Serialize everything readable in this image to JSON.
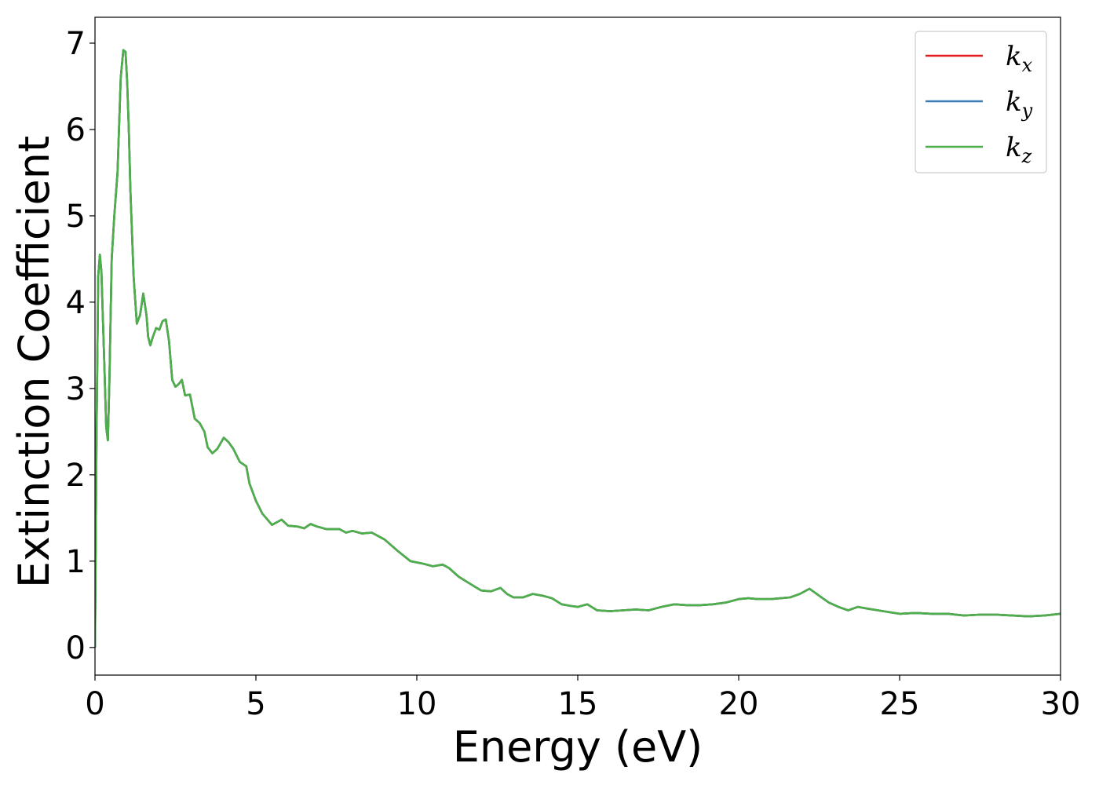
{
  "chart_data": {
    "type": "line",
    "title": "",
    "xlabel": "Energy (eV)",
    "ylabel": "Extinction Coefficient",
    "xlim": [
      0,
      30
    ],
    "ylim": [
      -0.32,
      7.3
    ],
    "xticks": [
      0,
      5,
      10,
      15,
      20,
      25,
      30
    ],
    "yticks": [
      0,
      1,
      2,
      3,
      4,
      5,
      6,
      7
    ],
    "grid": false,
    "legend": {
      "position": "top-right"
    },
    "x": [
      0,
      0.05,
      0.1,
      0.15,
      0.2,
      0.28,
      0.35,
      0.4,
      0.45,
      0.52,
      0.6,
      0.7,
      0.8,
      0.88,
      0.95,
      1.0,
      1.05,
      1.1,
      1.2,
      1.3,
      1.4,
      1.5,
      1.6,
      1.65,
      1.72,
      1.8,
      1.9,
      2.0,
      2.1,
      2.2,
      2.3,
      2.4,
      2.5,
      2.6,
      2.7,
      2.8,
      2.95,
      3.1,
      3.25,
      3.4,
      3.5,
      3.65,
      3.8,
      4.0,
      4.15,
      4.3,
      4.5,
      4.7,
      4.8,
      5.0,
      5.2,
      5.5,
      5.8,
      6.0,
      6.3,
      6.5,
      6.7,
      6.9,
      7.2,
      7.6,
      7.8,
      8.0,
      8.3,
      8.6,
      9.0,
      9.4,
      9.8,
      10.2,
      10.5,
      10.8,
      11.0,
      11.3,
      11.6,
      12.0,
      12.3,
      12.6,
      12.8,
      13.0,
      13.3,
      13.6,
      13.9,
      14.2,
      14.5,
      14.8,
      15.0,
      15.3,
      15.6,
      16.0,
      16.4,
      16.8,
      17.2,
      17.6,
      18.0,
      18.4,
      18.8,
      19.2,
      19.6,
      20.0,
      20.3,
      20.6,
      21.0,
      21.3,
      21.6,
      21.9,
      22.2,
      22.5,
      22.8,
      23.1,
      23.4,
      23.7,
      24.0,
      24.5,
      25.0,
      25.5,
      26.0,
      26.5,
      27.0,
      27.5,
      28.0,
      28.5,
      29.0,
      29.5,
      30.0
    ],
    "series": [
      {
        "name": "k_x",
        "color": "#e41a1c",
        "values": [
          0,
          2.5,
          4.3,
          4.55,
          4.35,
          3.4,
          2.55,
          2.4,
          3.1,
          4.5,
          5.0,
          5.5,
          6.6,
          6.92,
          6.9,
          6.55,
          6.0,
          5.3,
          4.3,
          3.75,
          3.85,
          4.1,
          3.85,
          3.6,
          3.5,
          3.6,
          3.7,
          3.68,
          3.78,
          3.8,
          3.55,
          3.1,
          3.02,
          3.05,
          3.1,
          2.92,
          2.93,
          2.65,
          2.6,
          2.5,
          2.32,
          2.25,
          2.3,
          2.43,
          2.38,
          2.3,
          2.15,
          2.1,
          1.9,
          1.7,
          1.55,
          1.42,
          1.48,
          1.41,
          1.4,
          1.38,
          1.43,
          1.4,
          1.37,
          1.37,
          1.33,
          1.35,
          1.32,
          1.33,
          1.25,
          1.12,
          1.0,
          0.97,
          0.94,
          0.96,
          0.92,
          0.82,
          0.75,
          0.66,
          0.65,
          0.69,
          0.62,
          0.58,
          0.58,
          0.62,
          0.6,
          0.57,
          0.5,
          0.48,
          0.47,
          0.5,
          0.43,
          0.42,
          0.43,
          0.44,
          0.43,
          0.47,
          0.5,
          0.49,
          0.49,
          0.5,
          0.52,
          0.56,
          0.57,
          0.56,
          0.56,
          0.57,
          0.58,
          0.62,
          0.68,
          0.6,
          0.52,
          0.47,
          0.43,
          0.47,
          0.45,
          0.42,
          0.39,
          0.4,
          0.39,
          0.39,
          0.37,
          0.38,
          0.38,
          0.37,
          0.36,
          0.37,
          0.39
        ]
      },
      {
        "name": "k_y",
        "color": "#377eb8",
        "values": [
          0,
          2.5,
          4.3,
          4.55,
          4.35,
          3.4,
          2.55,
          2.4,
          3.1,
          4.5,
          5.0,
          5.5,
          6.6,
          6.92,
          6.9,
          6.55,
          6.0,
          5.3,
          4.3,
          3.75,
          3.85,
          4.1,
          3.85,
          3.6,
          3.5,
          3.6,
          3.7,
          3.68,
          3.78,
          3.8,
          3.55,
          3.1,
          3.02,
          3.05,
          3.1,
          2.92,
          2.93,
          2.65,
          2.6,
          2.5,
          2.32,
          2.25,
          2.3,
          2.43,
          2.38,
          2.3,
          2.15,
          2.1,
          1.9,
          1.7,
          1.55,
          1.42,
          1.48,
          1.41,
          1.4,
          1.38,
          1.43,
          1.4,
          1.37,
          1.37,
          1.33,
          1.35,
          1.32,
          1.33,
          1.25,
          1.12,
          1.0,
          0.97,
          0.94,
          0.96,
          0.92,
          0.82,
          0.75,
          0.66,
          0.65,
          0.69,
          0.62,
          0.58,
          0.58,
          0.62,
          0.6,
          0.57,
          0.5,
          0.48,
          0.47,
          0.5,
          0.43,
          0.42,
          0.43,
          0.44,
          0.43,
          0.47,
          0.5,
          0.49,
          0.49,
          0.5,
          0.52,
          0.56,
          0.57,
          0.56,
          0.56,
          0.57,
          0.58,
          0.62,
          0.68,
          0.6,
          0.52,
          0.47,
          0.43,
          0.47,
          0.45,
          0.42,
          0.39,
          0.4,
          0.39,
          0.39,
          0.37,
          0.38,
          0.38,
          0.37,
          0.36,
          0.37,
          0.39
        ]
      },
      {
        "name": "k_z",
        "color": "#4daf4a",
        "values": [
          0,
          2.5,
          4.3,
          4.55,
          4.35,
          3.4,
          2.55,
          2.4,
          3.1,
          4.5,
          5.0,
          5.5,
          6.6,
          6.92,
          6.9,
          6.55,
          6.0,
          5.3,
          4.3,
          3.75,
          3.85,
          4.1,
          3.85,
          3.6,
          3.5,
          3.6,
          3.7,
          3.68,
          3.78,
          3.8,
          3.55,
          3.1,
          3.02,
          3.05,
          3.1,
          2.92,
          2.93,
          2.65,
          2.6,
          2.5,
          2.32,
          2.25,
          2.3,
          2.43,
          2.38,
          2.3,
          2.15,
          2.1,
          1.9,
          1.7,
          1.55,
          1.42,
          1.48,
          1.41,
          1.4,
          1.38,
          1.43,
          1.4,
          1.37,
          1.37,
          1.33,
          1.35,
          1.32,
          1.33,
          1.25,
          1.12,
          1.0,
          0.97,
          0.94,
          0.96,
          0.92,
          0.82,
          0.75,
          0.66,
          0.65,
          0.69,
          0.62,
          0.58,
          0.58,
          0.62,
          0.6,
          0.57,
          0.5,
          0.48,
          0.47,
          0.5,
          0.43,
          0.42,
          0.43,
          0.44,
          0.43,
          0.47,
          0.5,
          0.49,
          0.49,
          0.5,
          0.52,
          0.56,
          0.57,
          0.56,
          0.56,
          0.57,
          0.58,
          0.62,
          0.68,
          0.6,
          0.52,
          0.47,
          0.43,
          0.47,
          0.45,
          0.42,
          0.39,
          0.4,
          0.39,
          0.39,
          0.37,
          0.38,
          0.38,
          0.37,
          0.36,
          0.37,
          0.39
        ]
      }
    ]
  }
}
